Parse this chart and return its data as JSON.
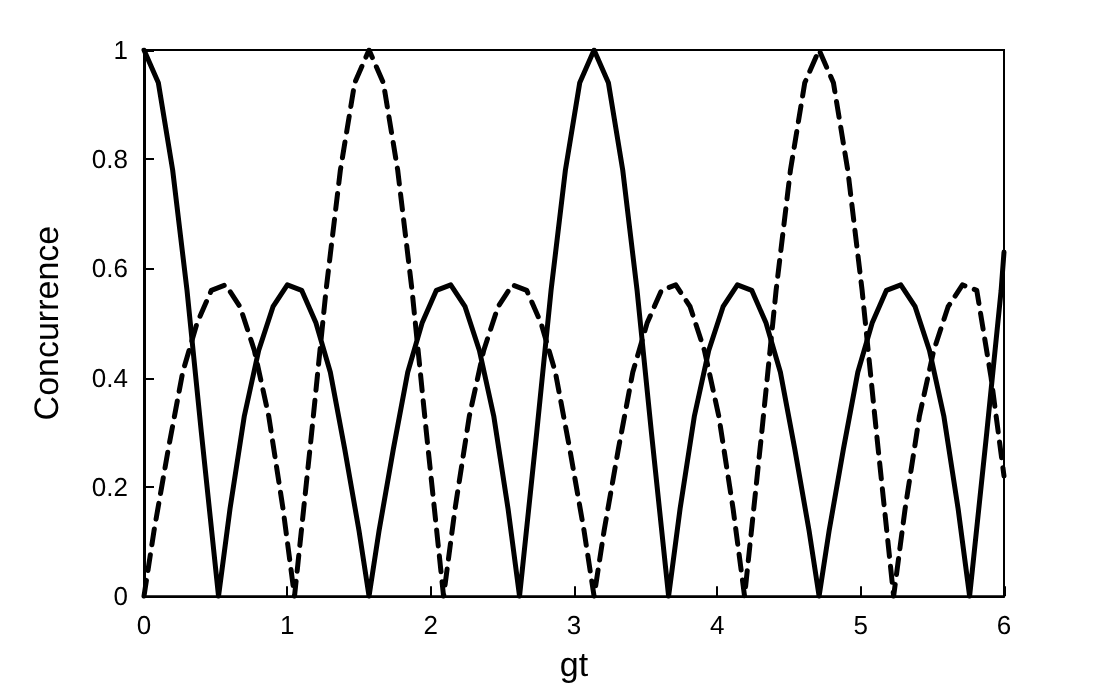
{
  "chart_data": {
    "type": "line",
    "xlabel": "gt",
    "ylabel": "Concurrence",
    "xlim": [
      0,
      6
    ],
    "xticks": [
      0,
      1,
      2,
      3,
      4,
      5,
      6
    ],
    "ylim": [
      0,
      1
    ],
    "yticks": [
      0,
      0.2,
      0.4,
      0.6,
      0.8,
      1
    ],
    "marker": "none",
    "series": [
      {
        "color": "#000000",
        "line_style": "solid",
        "x": [
          0,
          0.1,
          0.2,
          0.3,
          0.4,
          0.5,
          0.52,
          0.6,
          0.7,
          0.8,
          0.9,
          1.0,
          1.1,
          1.2,
          1.3,
          1.4,
          1.5,
          1.57,
          1.64,
          1.74,
          1.84,
          1.94,
          2.04,
          2.14,
          2.24,
          2.34,
          2.44,
          2.54,
          2.62,
          2.64,
          2.74,
          2.84,
          2.94,
          3.04,
          3.14,
          3.24,
          3.34,
          3.44,
          3.54,
          3.64,
          3.66,
          3.74,
          3.84,
          3.94,
          4.04,
          4.14,
          4.24,
          4.34,
          4.44,
          4.54,
          4.64,
          4.71,
          4.78,
          4.88,
          4.98,
          5.08,
          5.18,
          5.28,
          5.38,
          5.48,
          5.58,
          5.68,
          5.76,
          5.78,
          5.88,
          5.98,
          6
        ],
        "values": [
          1,
          0.94,
          0.78,
          0.56,
          0.3,
          0.05,
          0,
          0.16,
          0.33,
          0.45,
          0.53,
          0.57,
          0.56,
          0.5,
          0.41,
          0.27,
          0.12,
          0,
          0.12,
          0.27,
          0.41,
          0.5,
          0.56,
          0.57,
          0.53,
          0.45,
          0.33,
          0.16,
          0,
          0.05,
          0.3,
          0.56,
          0.78,
          0.94,
          1,
          0.94,
          0.78,
          0.56,
          0.3,
          0.05,
          0,
          0.16,
          0.33,
          0.45,
          0.53,
          0.57,
          0.56,
          0.5,
          0.41,
          0.27,
          0.12,
          0,
          0.12,
          0.27,
          0.41,
          0.5,
          0.56,
          0.57,
          0.53,
          0.45,
          0.33,
          0.16,
          0,
          0.05,
          0.3,
          0.56,
          0.63
        ]
      },
      {
        "color": "#000000",
        "line_style": "dashed",
        "x": [
          0,
          0.07,
          0.17,
          0.27,
          0.37,
          0.47,
          0.57,
          0.67,
          0.77,
          0.87,
          0.97,
          1.05,
          1.07,
          1.17,
          1.27,
          1.37,
          1.47,
          1.57,
          1.67,
          1.77,
          1.87,
          1.97,
          2.07,
          2.09,
          2.17,
          2.27,
          2.37,
          2.47,
          2.57,
          2.67,
          2.77,
          2.87,
          2.97,
          3.07,
          3.14,
          3.21,
          3.31,
          3.41,
          3.51,
          3.61,
          3.71,
          3.81,
          3.91,
          4.01,
          4.11,
          4.19,
          4.21,
          4.31,
          4.41,
          4.51,
          4.61,
          4.71,
          4.81,
          4.91,
          5.01,
          5.11,
          5.21,
          5.23,
          5.31,
          5.41,
          5.51,
          5.61,
          5.71,
          5.81,
          5.91,
          6
        ],
        "values": [
          0,
          0.12,
          0.27,
          0.41,
          0.5,
          0.56,
          0.57,
          0.53,
          0.45,
          0.33,
          0.16,
          0,
          0.05,
          0.3,
          0.56,
          0.78,
          0.94,
          1,
          0.94,
          0.78,
          0.56,
          0.3,
          0.05,
          0,
          0.16,
          0.33,
          0.45,
          0.53,
          0.57,
          0.56,
          0.5,
          0.41,
          0.27,
          0.12,
          0,
          0.12,
          0.27,
          0.41,
          0.5,
          0.56,
          0.57,
          0.53,
          0.45,
          0.33,
          0.16,
          0,
          0.05,
          0.3,
          0.56,
          0.78,
          0.94,
          1,
          0.94,
          0.78,
          0.56,
          0.3,
          0.05,
          0,
          0.16,
          0.33,
          0.45,
          0.53,
          0.57,
          0.56,
          0.4,
          0.22
        ]
      }
    ]
  }
}
